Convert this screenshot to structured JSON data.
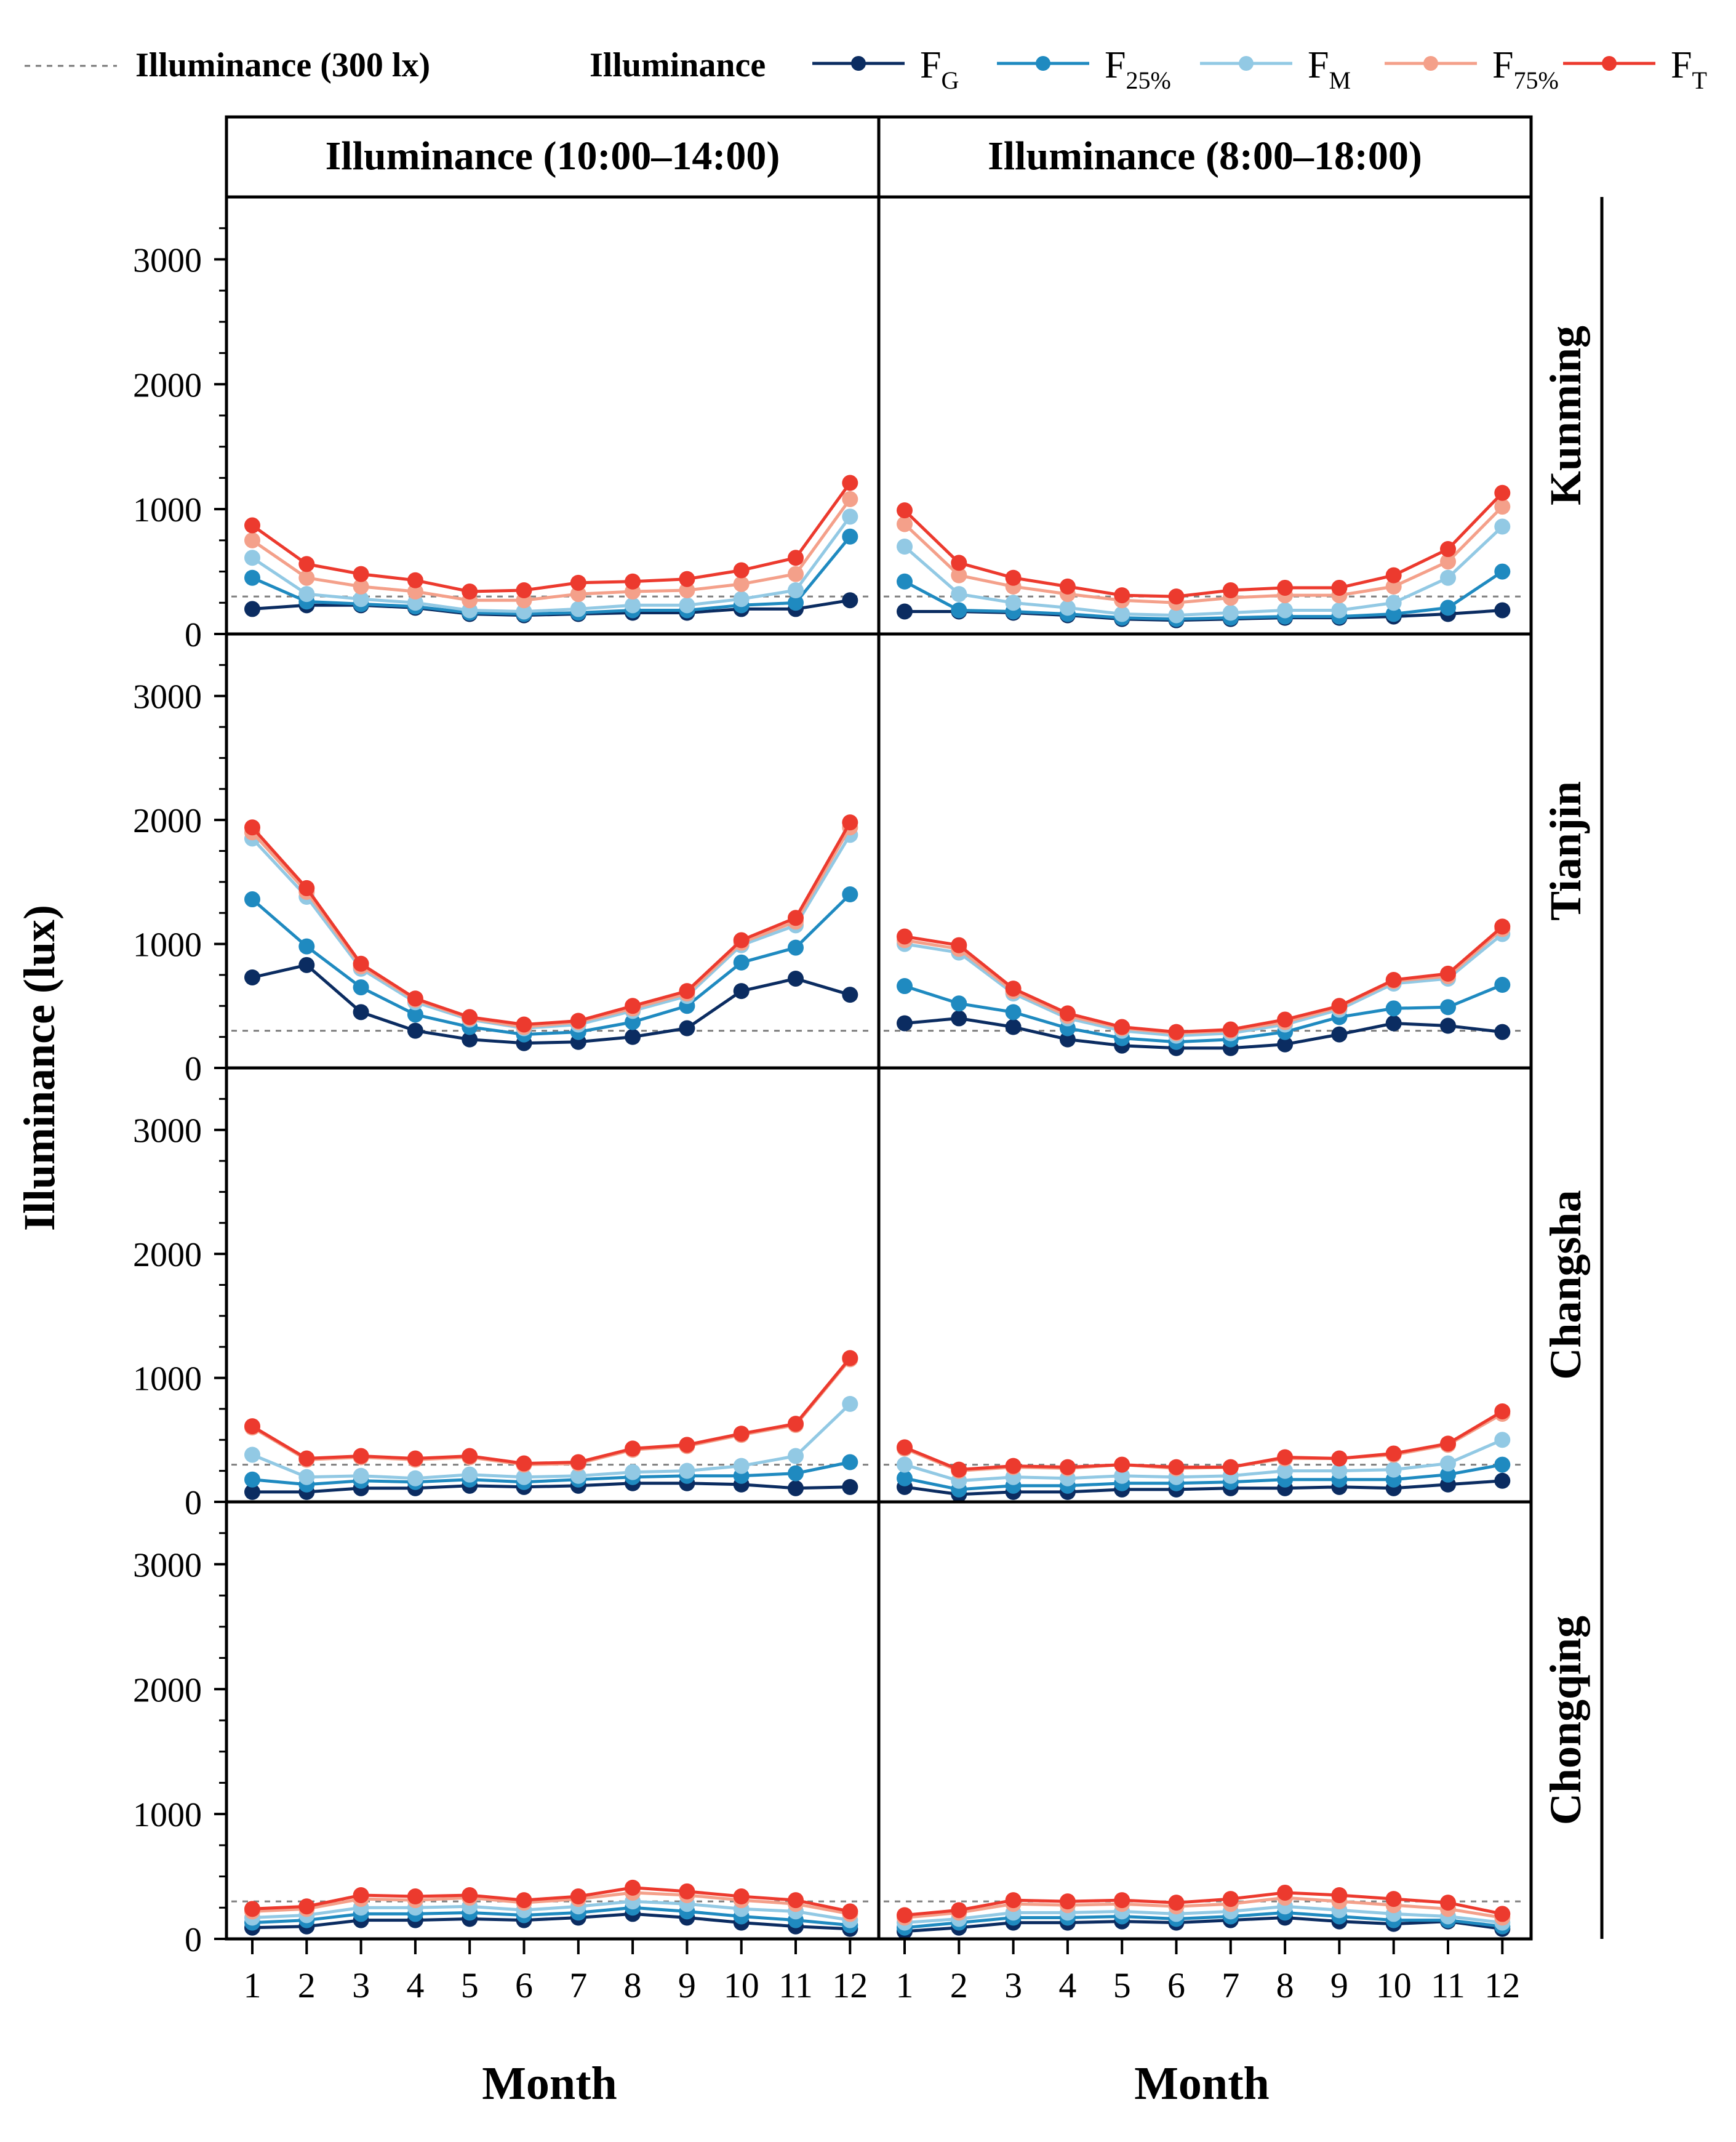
{
  "chart_data": {
    "type": "line",
    "legend": {
      "reference_label": "Illuminance (300 lx)",
      "group_label": "Illuminance",
      "placement": "top"
    },
    "ylabel": "Illuminance (lux)",
    "xlabel": "Month",
    "ylim": [
      0,
      3500
    ],
    "yticks": [
      0,
      1000,
      2000,
      3000
    ],
    "ytick_labels": [
      "0",
      "1000",
      "2000",
      "3000"
    ],
    "reference_value": 300,
    "categories": [
      "1",
      "2",
      "3",
      "4",
      "5",
      "6",
      "7",
      "8",
      "9",
      "10",
      "11",
      "12"
    ],
    "columns": [
      "Illuminance (10:00–14:00)",
      "Illuminance (8:00–18:00)"
    ],
    "rows": [
      "Kunming",
      "Tianjin",
      "Changsha",
      "Chongqing"
    ],
    "series_meta": [
      {
        "key": "FG",
        "base": "F",
        "sub": "G",
        "color": "#0b2c61"
      },
      {
        "key": "F25",
        "base": "F",
        "sub": "25%",
        "color": "#1f8ac0"
      },
      {
        "key": "FM",
        "base": "F",
        "sub": "M",
        "color": "#92c9e4"
      },
      {
        "key": "F75",
        "base": "F",
        "sub": "75%",
        "color": "#f4a08a"
      },
      {
        "key": "FT",
        "base": "F",
        "sub": "T",
        "color": "#ec3a2e"
      }
    ],
    "panels": [
      {
        "row": "Kunming",
        "column": "Illuminance (10:00–14:00)",
        "series": {
          "FG": [
            200,
            230,
            230,
            210,
            160,
            150,
            160,
            170,
            170,
            200,
            200,
            270
          ],
          "F25": [
            450,
            260,
            240,
            220,
            170,
            160,
            170,
            190,
            190,
            230,
            250,
            780
          ],
          "FM": [
            610,
            320,
            280,
            250,
            190,
            180,
            200,
            230,
            230,
            280,
            350,
            940
          ],
          "F75": [
            750,
            450,
            380,
            340,
            270,
            270,
            320,
            340,
            350,
            400,
            480,
            1080
          ],
          "FT": [
            870,
            560,
            480,
            430,
            340,
            350,
            410,
            420,
            440,
            510,
            610,
            1210
          ]
        }
      },
      {
        "row": "Kunming",
        "column": "Illuminance (8:00–18:00)",
        "series": {
          "FG": [
            180,
            180,
            170,
            150,
            120,
            110,
            120,
            130,
            130,
            140,
            160,
            190
          ],
          "F25": [
            420,
            190,
            180,
            160,
            130,
            120,
            130,
            140,
            140,
            160,
            210,
            500
          ],
          "FM": [
            700,
            320,
            250,
            210,
            160,
            150,
            170,
            190,
            190,
            250,
            450,
            860
          ],
          "F75": [
            880,
            470,
            380,
            320,
            270,
            250,
            290,
            310,
            310,
            380,
            580,
            1020
          ],
          "FT": [
            990,
            570,
            450,
            380,
            310,
            300,
            350,
            370,
            370,
            470,
            680,
            1130
          ]
        }
      },
      {
        "row": "Tianjin",
        "column": "Illuminance (10:00–14:00)",
        "series": {
          "FG": [
            730,
            830,
            450,
            300,
            230,
            200,
            210,
            250,
            320,
            620,
            720,
            590
          ],
          "F25": [
            1360,
            980,
            650,
            430,
            330,
            270,
            290,
            370,
            500,
            850,
            970,
            1400
          ],
          "FM": [
            1850,
            1380,
            800,
            530,
            390,
            320,
            350,
            460,
            580,
            990,
            1150,
            1880
          ],
          "F75": [
            1900,
            1420,
            820,
            550,
            400,
            330,
            370,
            480,
            600,
            1010,
            1180,
            1940
          ],
          "FT": [
            1940,
            1450,
            840,
            560,
            410,
            350,
            380,
            500,
            620,
            1030,
            1210,
            1980
          ]
        }
      },
      {
        "row": "Tianjin",
        "column": "Illuminance (8:00–18:00)",
        "series": {
          "FG": [
            360,
            400,
            330,
            230,
            180,
            160,
            160,
            190,
            270,
            360,
            340,
            290
          ],
          "F25": [
            660,
            520,
            450,
            320,
            240,
            210,
            230,
            290,
            410,
            480,
            490,
            670
          ],
          "FM": [
            1000,
            930,
            600,
            400,
            300,
            260,
            280,
            350,
            470,
            680,
            720,
            1080
          ],
          "F75": [
            1030,
            960,
            620,
            420,
            320,
            280,
            300,
            370,
            490,
            700,
            740,
            1120
          ],
          "FT": [
            1060,
            990,
            640,
            440,
            330,
            290,
            310,
            390,
            500,
            710,
            760,
            1140
          ]
        }
      },
      {
        "row": "Changsha",
        "column": "Illuminance (10:00–14:00)",
        "series": {
          "FG": [
            80,
            80,
            110,
            110,
            130,
            120,
            130,
            150,
            150,
            140,
            110,
            120
          ],
          "F25": [
            180,
            140,
            170,
            160,
            180,
            160,
            180,
            200,
            210,
            210,
            230,
            320
          ],
          "FM": [
            380,
            200,
            210,
            190,
            220,
            200,
            210,
            240,
            250,
            290,
            370,
            790
          ],
          "F75": [
            600,
            340,
            360,
            340,
            360,
            300,
            310,
            420,
            450,
            540,
            620,
            1150
          ],
          "FT": [
            610,
            350,
            370,
            350,
            370,
            310,
            320,
            430,
            460,
            550,
            630,
            1160
          ]
        }
      },
      {
        "row": "Changsha",
        "column": "Illuminance (8:00–18:00)",
        "series": {
          "FG": [
            120,
            60,
            80,
            80,
            100,
            100,
            110,
            110,
            120,
            110,
            140,
            170
          ],
          "F25": [
            190,
            100,
            130,
            130,
            150,
            150,
            160,
            180,
            180,
            180,
            220,
            300
          ],
          "FM": [
            300,
            170,
            200,
            190,
            210,
            200,
            210,
            250,
            250,
            260,
            310,
            500
          ],
          "F75": [
            430,
            250,
            280,
            270,
            300,
            270,
            280,
            350,
            350,
            380,
            460,
            710
          ],
          "FT": [
            440,
            260,
            290,
            280,
            300,
            280,
            280,
            360,
            350,
            390,
            470,
            730
          ]
        }
      },
      {
        "row": "Chongqing",
        "column": "Illuminance (10:00–14:00)",
        "series": {
          "FG": [
            90,
            100,
            150,
            150,
            160,
            150,
            170,
            200,
            170,
            130,
            100,
            80
          ],
          "F25": [
            130,
            150,
            200,
            200,
            210,
            190,
            210,
            250,
            220,
            180,
            150,
            110
          ],
          "FM": [
            170,
            190,
            250,
            250,
            260,
            230,
            260,
            300,
            280,
            240,
            220,
            150
          ],
          "F75": [
            220,
            240,
            320,
            310,
            330,
            290,
            320,
            370,
            350,
            310,
            280,
            200
          ],
          "FT": [
            240,
            260,
            350,
            340,
            350,
            310,
            340,
            410,
            380,
            340,
            310,
            220
          ]
        }
      },
      {
        "row": "Chongqing",
        "column": "Illuminance (8:00–18:00)",
        "series": {
          "FG": [
            60,
            90,
            130,
            130,
            140,
            130,
            150,
            170,
            140,
            120,
            140,
            80
          ],
          "F25": [
            90,
            130,
            170,
            170,
            180,
            160,
            180,
            210,
            180,
            150,
            150,
            100
          ],
          "FM": [
            130,
            160,
            210,
            210,
            220,
            200,
            220,
            260,
            230,
            200,
            180,
            130
          ],
          "F75": [
            170,
            210,
            280,
            270,
            280,
            260,
            280,
            330,
            300,
            270,
            240,
            170
          ],
          "FT": [
            190,
            230,
            310,
            300,
            310,
            290,
            320,
            370,
            350,
            320,
            290,
            200
          ]
        }
      }
    ]
  }
}
